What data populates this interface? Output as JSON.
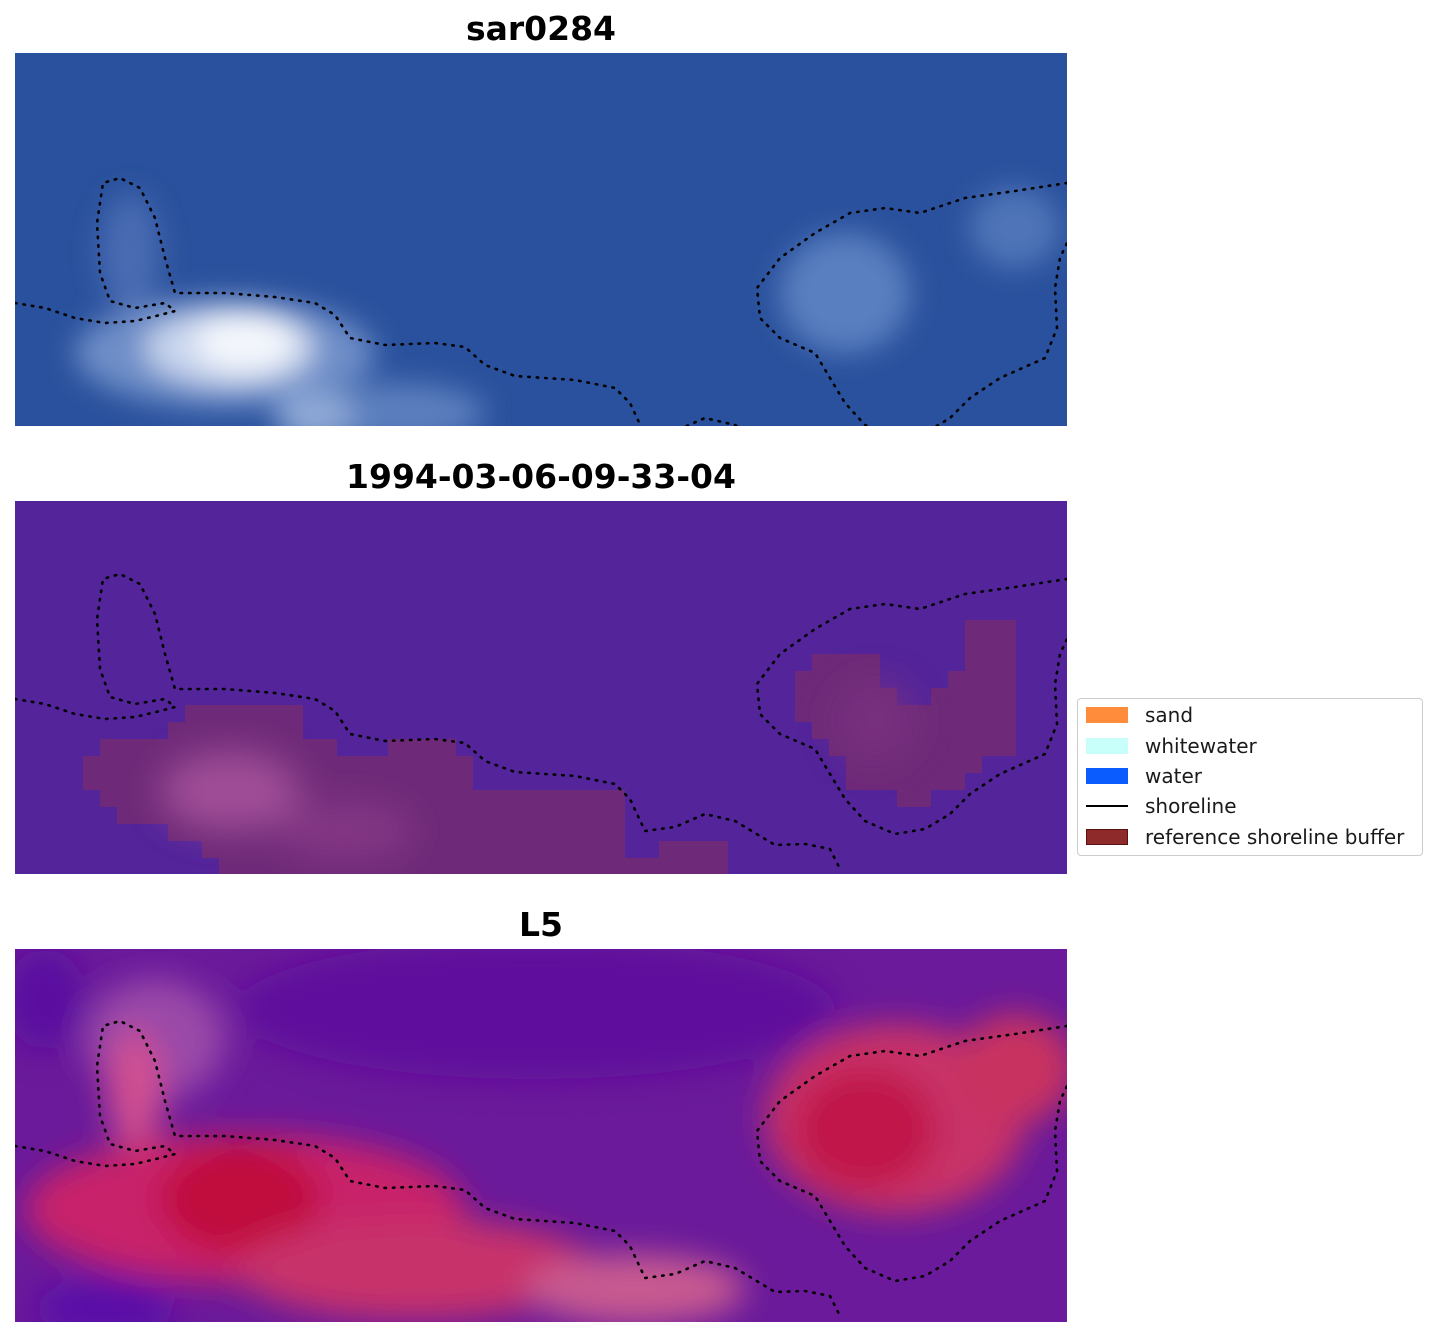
{
  "panels": [
    {
      "title": "sar0284"
    },
    {
      "title": "1994-03-06-09-33-04"
    },
    {
      "title": "L5"
    }
  ],
  "legend": {
    "items": [
      {
        "label": "sand",
        "color": "#ff8c3a",
        "kind": "patch"
      },
      {
        "label": "whitewater",
        "color": "#c8fffa",
        "kind": "patch"
      },
      {
        "label": "water",
        "color": "#0a5cff",
        "kind": "patch"
      },
      {
        "label": "shoreline",
        "color": "#000000",
        "kind": "line"
      },
      {
        "label": "reference shoreline buffer",
        "color": "#8f2a2a",
        "kind": "patch-edge"
      }
    ]
  },
  "colors": {
    "rgb_water": "#2a53a0",
    "classified_background": "#53249a",
    "classified_buffer": "#6e2a78",
    "mndwi_high": "#c0003a",
    "mndwi_low": "#5b0aa0",
    "shoreline_dots": "#000000"
  }
}
